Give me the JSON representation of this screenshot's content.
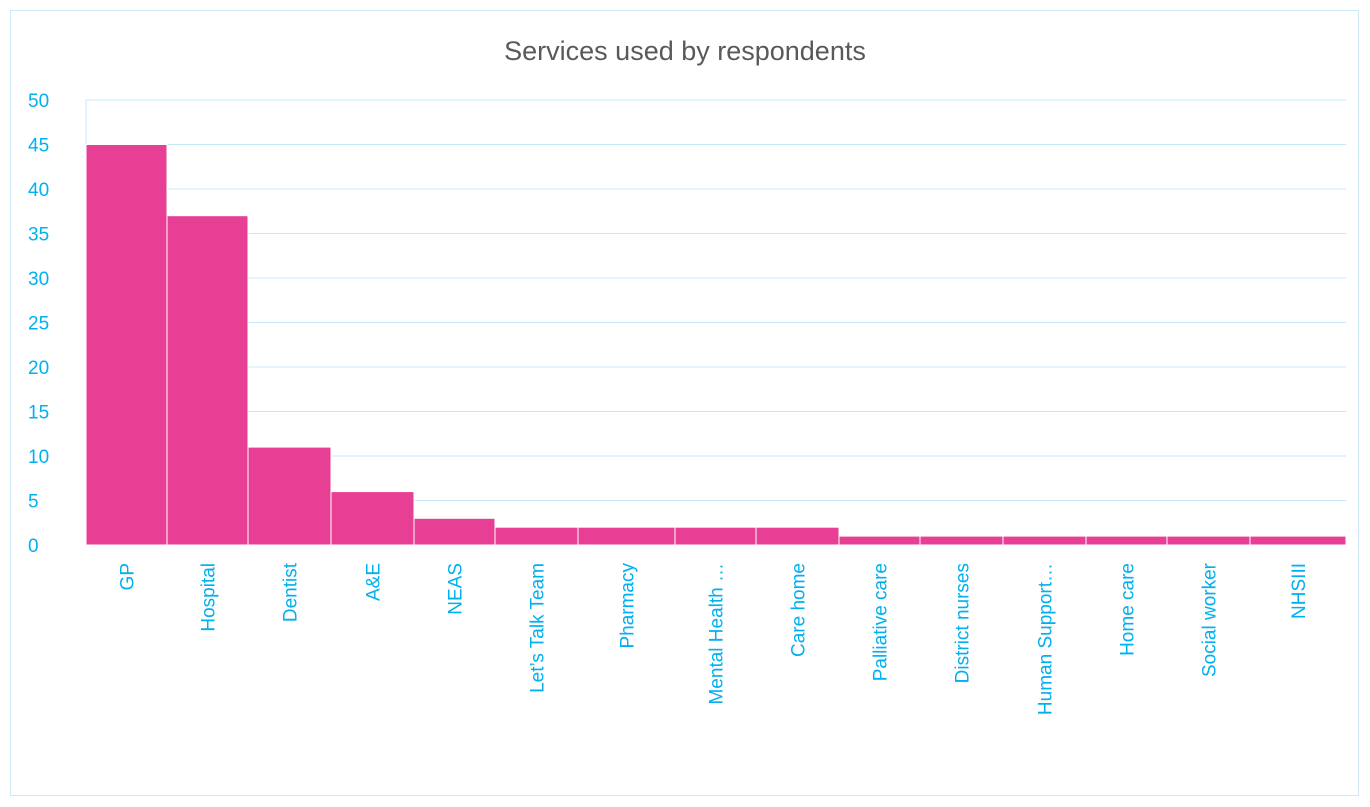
{
  "chart_data": {
    "type": "bar",
    "title": "Services used by respondents",
    "xlabel": "",
    "ylabel": "",
    "categories": [
      "GP",
      "Hospital",
      "Dentist",
      "A&E",
      "NEAS",
      "Let’s Talk Team",
      "Pharmacy",
      "Mental Health …",
      "Care home",
      "Palliative care",
      "District nurses",
      "Human Support…",
      "Home care",
      "Social worker",
      "NHSIII"
    ],
    "values": [
      45,
      37,
      11,
      6,
      3,
      2,
      2,
      2,
      2,
      1,
      1,
      1,
      1,
      1,
      1
    ],
    "ylim": [
      0,
      50
    ],
    "yticks": [
      0,
      5,
      10,
      15,
      20,
      25,
      30,
      35,
      40,
      45,
      50
    ],
    "grid": true,
    "legend": "none"
  },
  "colors": {
    "bar": "#e63f94",
    "grid": "#c5e8f8",
    "axis_text": "#00b0f0",
    "title": "#595959"
  }
}
